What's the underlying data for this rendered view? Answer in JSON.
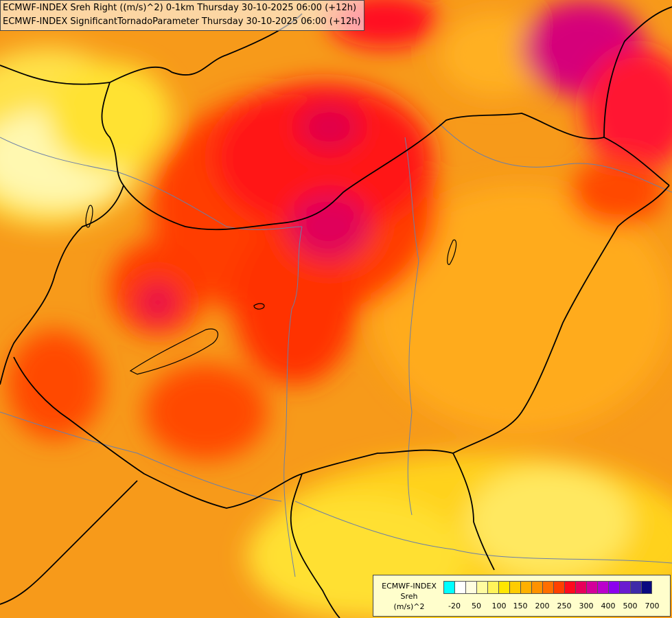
{
  "header": {
    "line1": "ECMWF-INDEX Sreh Right ((m/s)^2) 0-1km Thursday 30-10-2025 06:00 (+12h)",
    "line2": "ECMWF-INDEX SignificantTornadoParameter Thursday 30-10-2025 06:00 (+12h)"
  },
  "legend": {
    "title_line1": "ECMWF-INDEX",
    "title_line2": "Sreh",
    "title_line3": "(m/s)^2",
    "colors": [
      "#00ffff",
      "#ffffff",
      "#fffde0",
      "#fffba0",
      "#fff35a",
      "#ffe600",
      "#ffcc00",
      "#ffb000",
      "#ff9200",
      "#ff6f00",
      "#ff4000",
      "#ff0a1e",
      "#e8005a",
      "#d4009a",
      "#bb00cc",
      "#8c00ee",
      "#6a1ad0",
      "#3e2aa8",
      "#0a0a80"
    ],
    "tick_labels": [
      "-20",
      "50",
      "100",
      "150",
      "200",
      "250",
      "300",
      "400",
      "500",
      "700"
    ]
  }
}
